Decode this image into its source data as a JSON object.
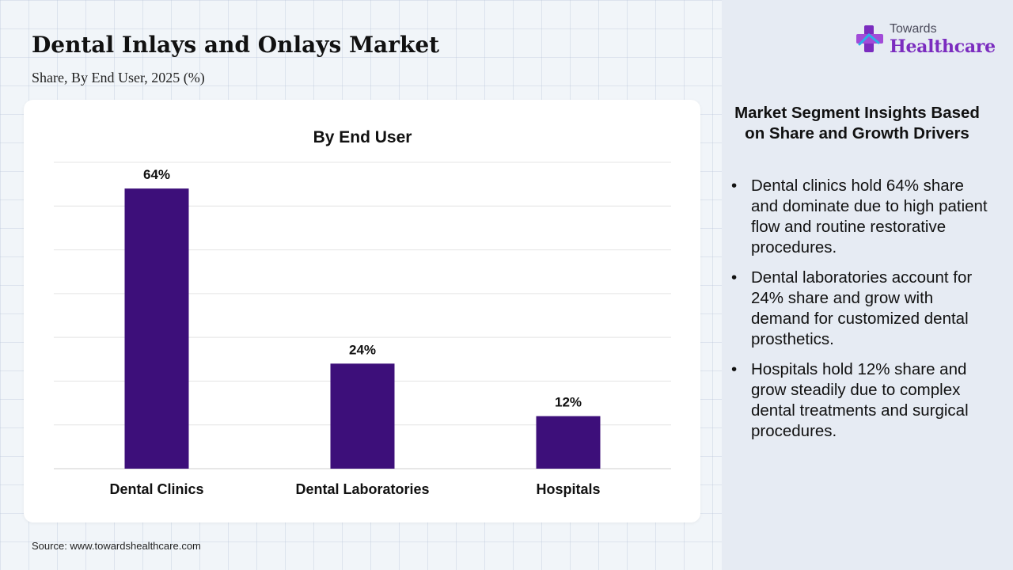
{
  "header": {
    "title": "Dental Inlays and Onlays Market",
    "subtitle": "Share, By End User, 2025 (%)"
  },
  "logo": {
    "small": "Towards",
    "big": "Healthcare"
  },
  "chart_data": {
    "type": "bar",
    "title": "By End User",
    "categories": [
      "Dental Clinics",
      "Dental Laboratories",
      "Hospitals"
    ],
    "values": [
      64,
      24,
      12
    ],
    "data_labels": [
      "64%",
      "24%",
      "12%"
    ],
    "ylim": [
      0,
      70
    ],
    "grid": true,
    "bar_color": "#3d0f7a"
  },
  "insights": {
    "title": "Market Segment Insights Based on Share and Growth Drivers",
    "items": [
      "Dental clinics hold 64% share and dominate due to high patient flow and routine restorative procedures.",
      "Dental laboratories account for 24% share and grow with demand for customized dental prosthetics.",
      "Hospitals hold 12% share and grow steadily due to complex dental treatments and surgical procedures."
    ],
    "bullet": "•"
  },
  "footer": {
    "source": "Source: www.towardshealthcare.com"
  }
}
